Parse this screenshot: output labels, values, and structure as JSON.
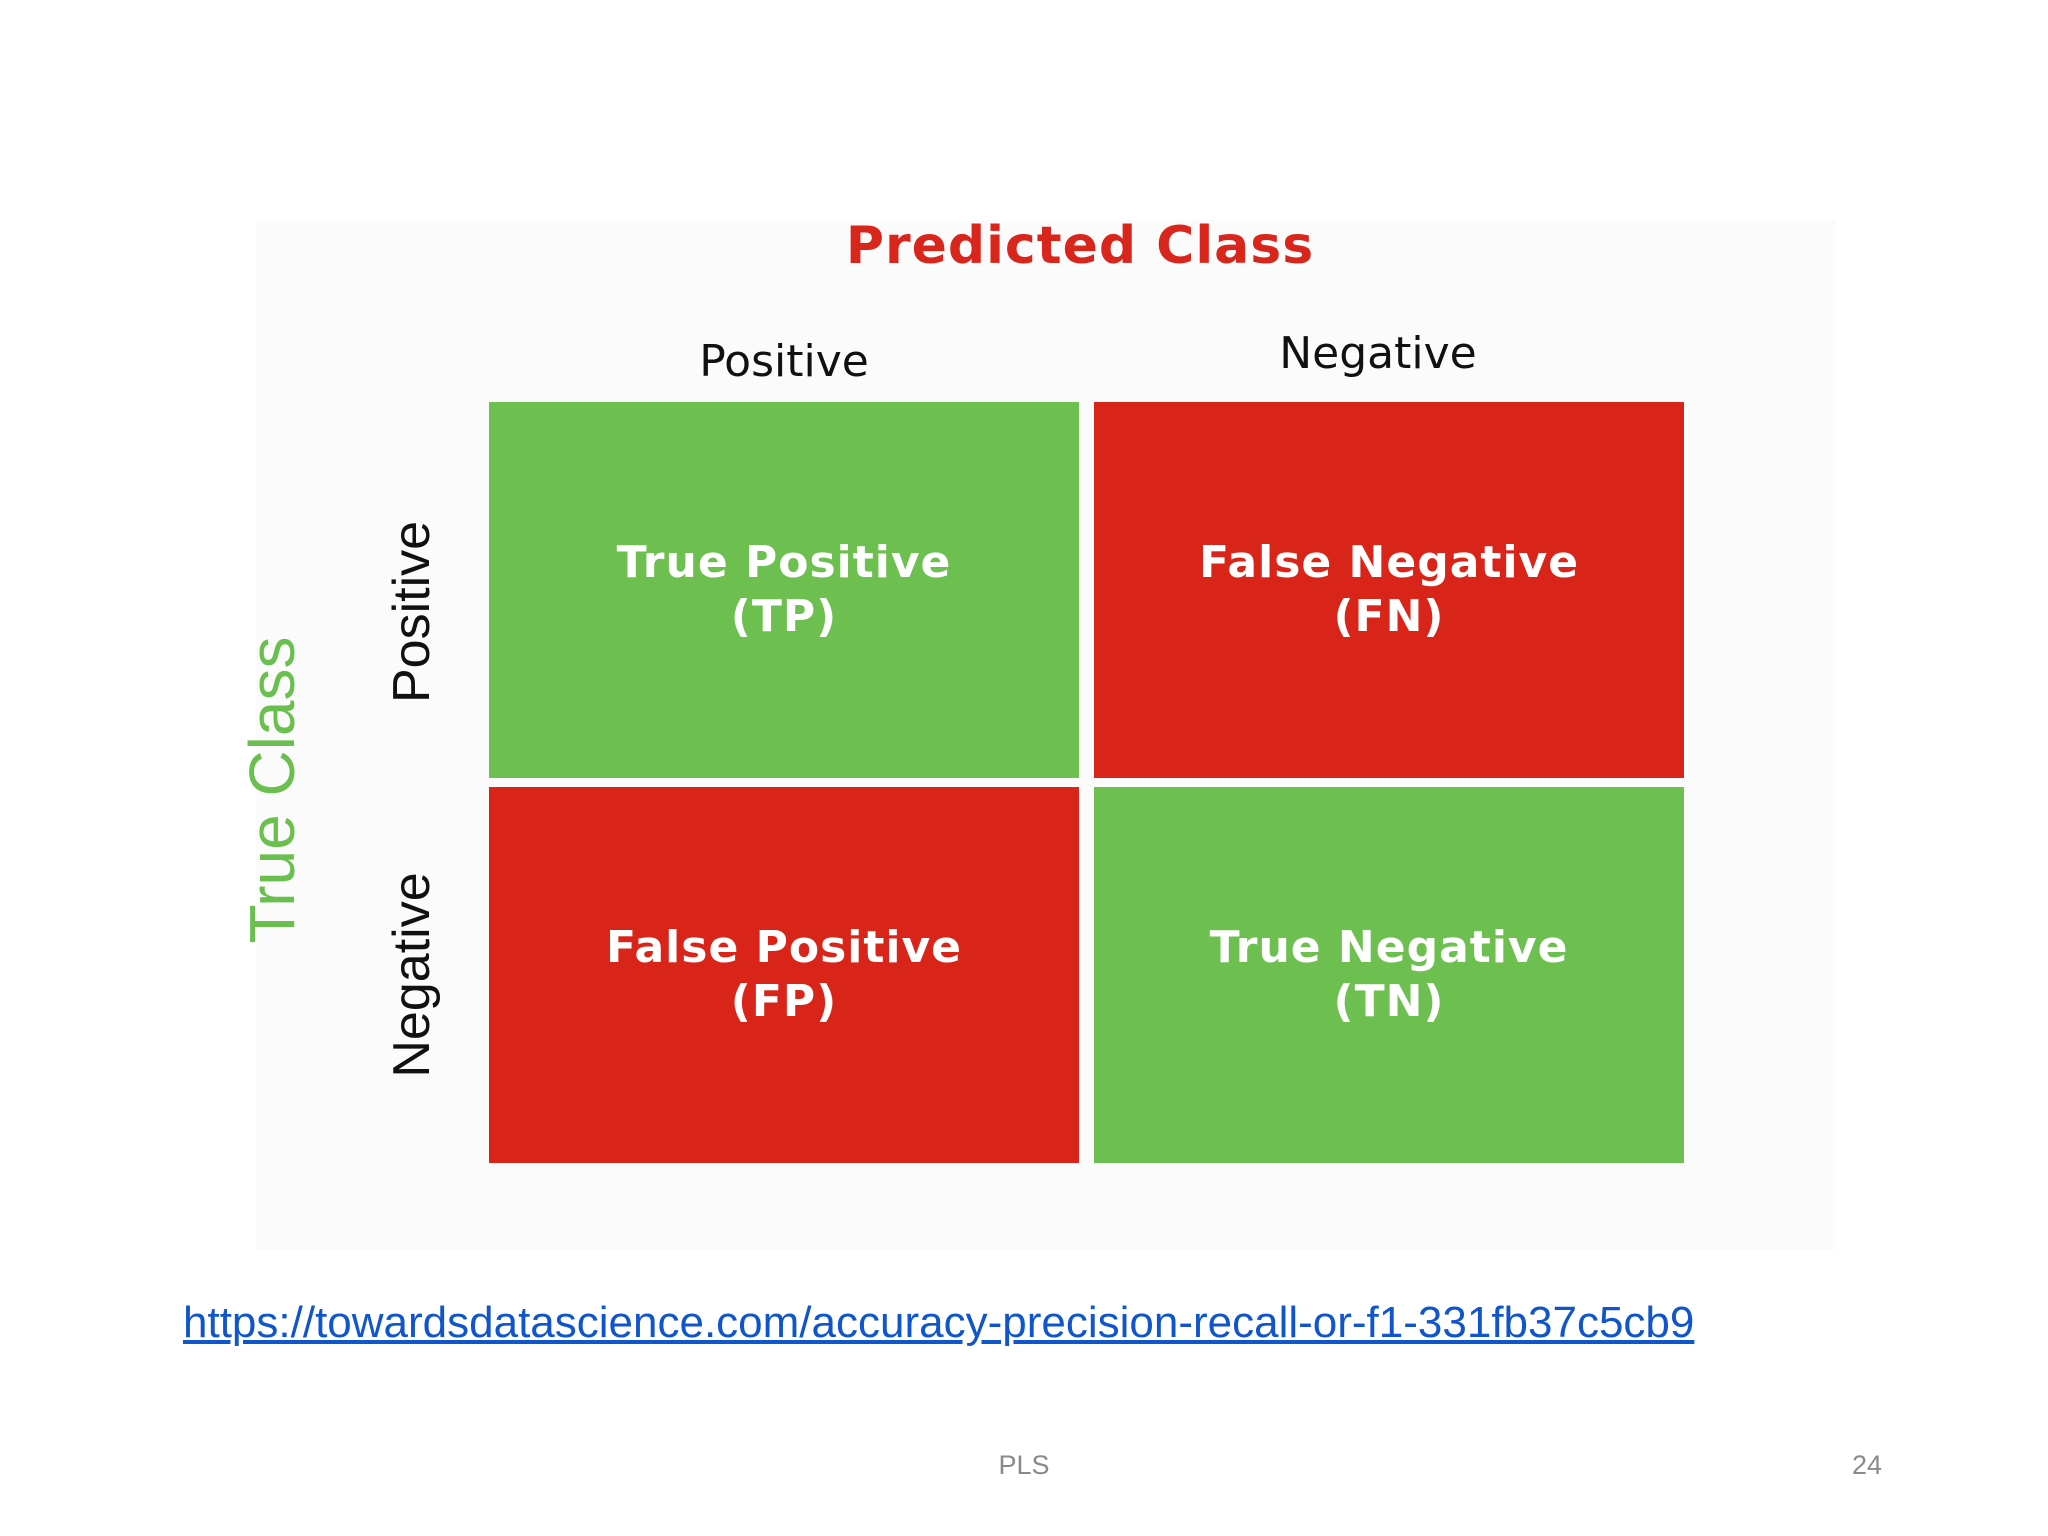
{
  "diagram": {
    "title": "Predicted Class",
    "y_title": "True Class",
    "col_headers": [
      "Positive",
      "Negative"
    ],
    "row_headers": [
      "Positive",
      "Negative"
    ],
    "cells": [
      {
        "line1": "True Positive",
        "line2": "(TP)",
        "color": "#6dbf4f"
      },
      {
        "line1": "False Negative",
        "line2": "(FN)",
        "color": "#d92519"
      },
      {
        "line1": "False Positive",
        "line2": "(FP)",
        "color": "#d92519"
      },
      {
        "line1": "True Negative",
        "line2": "(TN)",
        "color": "#6dbf4f"
      }
    ]
  },
  "colors": {
    "title": "#d9261c",
    "y_title": "#6bbf4e",
    "link": "#1155cc"
  },
  "source_link": "https://towardsdatascience.com/accuracy-precision-recall-or-f1-331fb37c5cb9",
  "footer": {
    "center": "PLS",
    "page_number": "24"
  }
}
